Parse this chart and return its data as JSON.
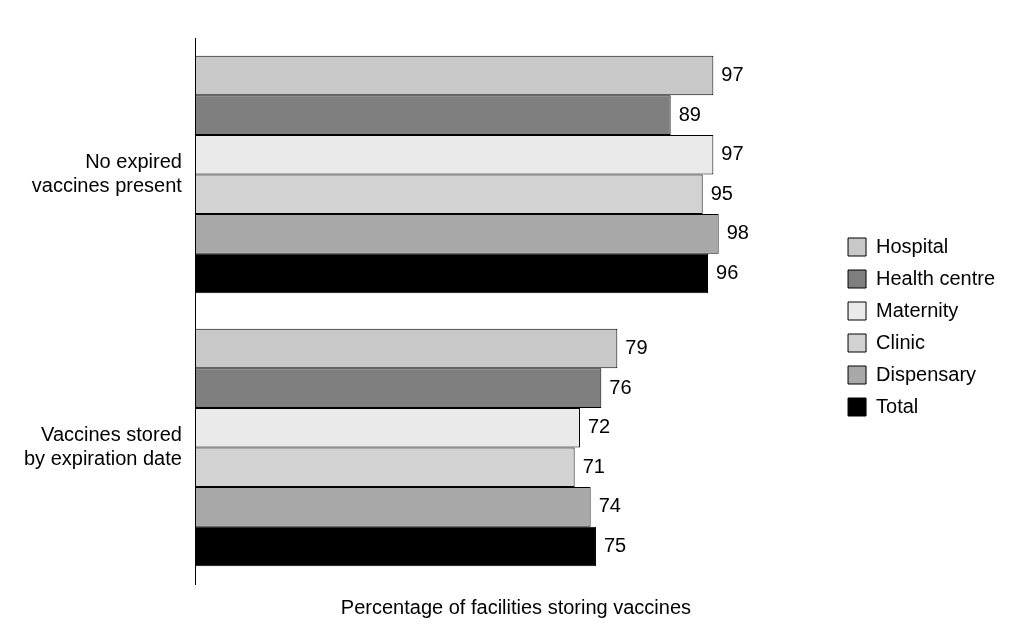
{
  "chart_data": {
    "type": "bar",
    "orientation": "horizontal",
    "xlabel": "Percentage of facilities storing vaccines",
    "categories": [
      "No expired vaccines present",
      "Vaccines stored by expiration date"
    ],
    "series": [
      {
        "name": "Hospital",
        "color": "#c8c8c8",
        "values": [
          97,
          79
        ]
      },
      {
        "name": "Health centre",
        "color": "#7f7f7f",
        "values": [
          89,
          76
        ]
      },
      {
        "name": "Maternity",
        "color": "#eaeaea",
        "values": [
          97,
          72
        ]
      },
      {
        "name": "Clinic",
        "color": "#d2d2d2",
        "values": [
          95,
          71
        ]
      },
      {
        "name": "Dispensary",
        "color": "#a8a8a8",
        "values": [
          98,
          74
        ]
      },
      {
        "name": "Total",
        "color": "#000000",
        "values": [
          96,
          75
        ]
      }
    ],
    "data_labels": true,
    "legend": "right",
    "grid": false
  }
}
